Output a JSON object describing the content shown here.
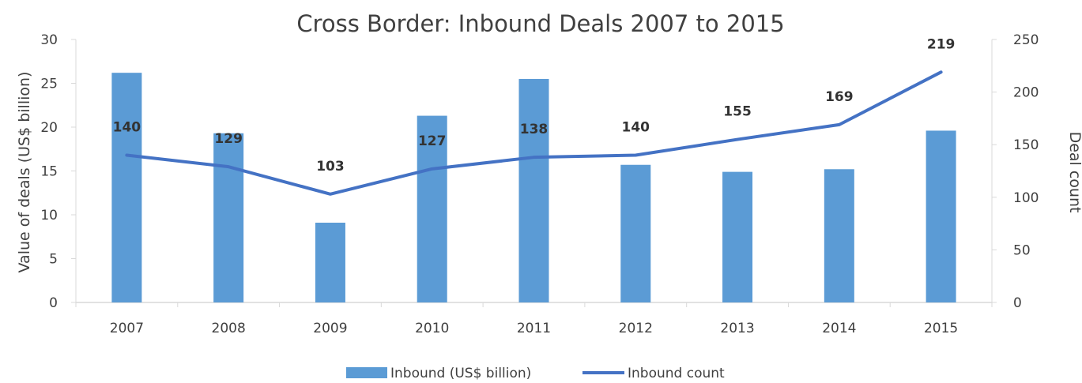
{
  "chart_data": {
    "type": "bar",
    "title": "Cross Border: Inbound Deals 2007 to 2015",
    "categories": [
      "2007",
      "2008",
      "2009",
      "2010",
      "2011",
      "2012",
      "2013",
      "2014",
      "2015"
    ],
    "series": [
      {
        "name": "Inbound (US$ billion)",
        "type": "bar",
        "axis": "left",
        "color": "#5B9BD5",
        "values": [
          26.2,
          19.3,
          9.1,
          21.3,
          25.5,
          15.7,
          14.9,
          15.2,
          19.6
        ]
      },
      {
        "name": "Inbound count",
        "type": "line",
        "axis": "right",
        "color": "#4472C4",
        "values": [
          140,
          129,
          103,
          127,
          138,
          140,
          155,
          169,
          219
        ],
        "data_labels": [
          "140",
          "129",
          "103",
          "127",
          "138",
          "140",
          "155",
          "169",
          "219"
        ]
      }
    ],
    "y_left": {
      "label": "Value of deals (US$ billion)",
      "range": [
        0,
        30
      ],
      "ticks": [
        "0",
        "5",
        "10",
        "15",
        "20",
        "25",
        "30"
      ]
    },
    "y_right": {
      "label": "Deal count",
      "range": [
        0,
        250
      ],
      "ticks": [
        "0",
        "50",
        "100",
        "150",
        "200",
        "250"
      ]
    },
    "legend_position": "bottom",
    "grid": false
  }
}
